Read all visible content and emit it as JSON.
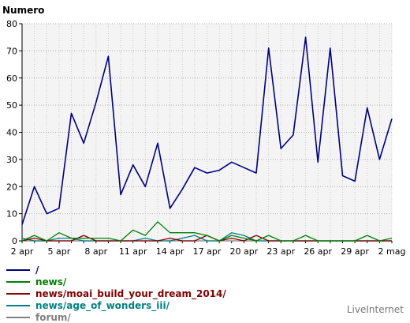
{
  "chart_data": {
    "type": "line",
    "ylabel": "Numero",
    "ylim": [
      0,
      80
    ],
    "yticks": [
      0,
      10,
      20,
      30,
      40,
      50,
      60,
      70,
      80
    ],
    "x": [
      "2 apr",
      "3 apr",
      "4 apr",
      "5 apr",
      "6 apr",
      "7 apr",
      "8 apr",
      "9 apr",
      "10 apr",
      "11 apr",
      "12 apr",
      "13 apr",
      "14 apr",
      "15 apr",
      "16 apr",
      "17 apr",
      "18 apr",
      "19 apr",
      "20 apr",
      "21 apr",
      "22 apr",
      "23 apr",
      "24 apr",
      "25 apr",
      "26 apr",
      "27 apr",
      "28 apr",
      "29 apr",
      "30 apr",
      "1 mag",
      "2 mag"
    ],
    "xtick_labels": [
      "2 apr",
      "5 apr",
      "8 apr",
      "11 apr",
      "14 apr",
      "17 apr",
      "20 apr",
      "23 apr",
      "26 apr",
      "29 apr",
      "2 mag"
    ],
    "grid": true,
    "legend_position": "bottom-left",
    "series": [
      {
        "name": "/",
        "color": "#000080",
        "values": [
          6,
          20,
          10,
          12,
          47,
          36,
          51,
          68,
          17,
          28,
          20,
          36,
          12,
          19,
          27,
          25,
          26,
          29,
          27,
          25,
          71,
          34,
          39,
          75,
          29,
          71,
          24,
          22,
          49,
          30,
          45
        ]
      },
      {
        "name": "news/",
        "color": "#008000",
        "values": [
          0,
          2,
          0,
          3,
          1,
          1,
          1,
          1,
          0,
          4,
          2,
          7,
          3,
          3,
          3,
          2,
          0,
          2,
          1,
          0,
          2,
          0,
          0,
          2,
          0,
          0,
          0,
          0,
          2,
          0,
          1
        ]
      },
      {
        "name": "news/moai_build_your_dream_2014/",
        "color": "#800000",
        "values": [
          0,
          1,
          0,
          0,
          0,
          2,
          0,
          0,
          0,
          0,
          0,
          0,
          1,
          0,
          0,
          2,
          0,
          1,
          0,
          2,
          0,
          0,
          0,
          0,
          0,
          0,
          0,
          0,
          0,
          0,
          0
        ]
      },
      {
        "name": "news/age_of_wonders_iii/",
        "color": "#008080",
        "values": [
          1,
          0,
          0,
          1,
          1,
          0,
          0,
          0,
          0,
          0,
          1,
          0,
          0,
          1,
          2,
          0,
          0,
          3,
          2,
          0,
          0,
          0,
          0,
          0,
          0,
          0,
          0,
          0,
          0,
          0,
          0
        ]
      },
      {
        "name": "forum/",
        "color": "#808080",
        "values": [
          0,
          0,
          0,
          0,
          0,
          0,
          0,
          0,
          0,
          0,
          0,
          0,
          0,
          0,
          0,
          0,
          0,
          0,
          0,
          0,
          0,
          0,
          0,
          0,
          0,
          0,
          0,
          0,
          0,
          0,
          0
        ]
      }
    ]
  },
  "brand": "LiveInternet"
}
